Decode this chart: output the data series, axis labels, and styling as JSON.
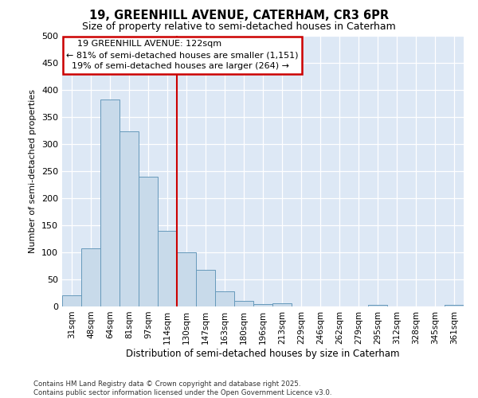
{
  "title_line1": "19, GREENHILL AVENUE, CATERHAM, CR3 6PR",
  "title_line2": "Size of property relative to semi-detached houses in Caterham",
  "xlabel": "Distribution of semi-detached houses by size in Caterham",
  "ylabel": "Number of semi-detached properties",
  "footer_line1": "Contains HM Land Registry data © Crown copyright and database right 2025.",
  "footer_line2": "Contains public sector information licensed under the Open Government Licence v3.0.",
  "categories": [
    "31sqm",
    "48sqm",
    "64sqm",
    "81sqm",
    "97sqm",
    "114sqm",
    "130sqm",
    "147sqm",
    "163sqm",
    "180sqm",
    "196sqm",
    "213sqm",
    "229sqm",
    "246sqm",
    "262sqm",
    "279sqm",
    "295sqm",
    "312sqm",
    "328sqm",
    "345sqm",
    "361sqm"
  ],
  "values": [
    20,
    107,
    383,
    323,
    240,
    140,
    100,
    68,
    28,
    10,
    5,
    6,
    0,
    0,
    0,
    0,
    3,
    0,
    0,
    0,
    3
  ],
  "bar_color": "#c8daea",
  "bar_edge_color": "#6699bb",
  "vline_x": 5.5,
  "vline_color": "#cc0000",
  "property_label": "19 GREENHILL AVENUE: 122sqm",
  "pct_smaller": 81,
  "n_smaller": 1151,
  "pct_larger": 19,
  "n_larger": 264,
  "annotation_edge_color": "#cc0000",
  "background_color": "#ffffff",
  "plot_bg_color": "#dde8f5",
  "ylim": [
    0,
    500
  ],
  "yticks": [
    0,
    50,
    100,
    150,
    200,
    250,
    300,
    350,
    400,
    450,
    500
  ]
}
